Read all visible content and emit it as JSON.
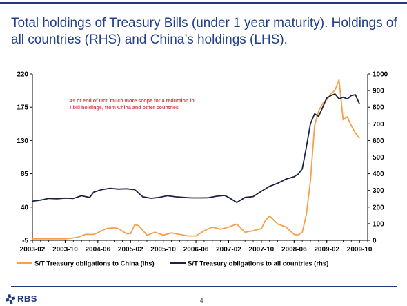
{
  "page": {
    "title": "Total holdings of Treasury Bills (under 1 year maturity). Holdings of all countries (RHS) and China’s holdings (LHS).",
    "page_number": "4",
    "logo_text": "RBS"
  },
  "chart_data": {
    "type": "line",
    "title": "",
    "xlabel": "",
    "ylabel": "",
    "y2label": "",
    "ylim": [
      -5,
      220
    ],
    "y2lim": [
      0,
      1000
    ],
    "yticks": [
      -5,
      40,
      85,
      130,
      175,
      220
    ],
    "y2ticks": [
      0,
      100,
      200,
      300,
      400,
      500,
      600,
      700,
      800,
      900,
      1000
    ],
    "xlim": [
      "2003-02",
      "2009-12"
    ],
    "xticks": [
      "2003-02",
      "2003-10",
      "2004-06",
      "2005-02",
      "2005-10",
      "2006-06",
      "2007-02",
      "2007-10",
      "2008-06",
      "2009-02",
      "2009-10"
    ],
    "grid": false,
    "legend_position": "bottom",
    "annotation": "As of end of Oct, much more scope for a reduction in T.bill holdings, from China and other countries",
    "colors": {
      "china": "#f5a04a",
      "all": "#1c2340",
      "annotation": "#d8414a",
      "axis": "#000000"
    },
    "series": [
      {
        "name": "S/T Treasury obligations to China (lhs)",
        "axis": "left",
        "x": [
          "2003-02",
          "2003-06",
          "2003-10",
          "2004-01",
          "2004-03",
          "2004-05",
          "2004-07",
          "2004-08",
          "2004-10",
          "2004-11",
          "2005-01",
          "2005-02",
          "2005-03",
          "2005-04",
          "2005-06",
          "2005-08",
          "2005-10",
          "2005-12",
          "2006-02",
          "2006-04",
          "2006-06",
          "2006-08",
          "2006-10",
          "2006-12",
          "2007-02",
          "2007-04",
          "2007-06",
          "2007-08",
          "2007-10",
          "2007-11",
          "2007-12",
          "2008-02",
          "2008-04",
          "2008-06",
          "2008-07",
          "2008-08",
          "2008-09",
          "2008-10",
          "2008-11",
          "2008-12",
          "2009-01",
          "2009-02",
          "2009-03",
          "2009-04",
          "2009-05",
          "2009-06",
          "2009-07",
          "2009-08",
          "2009-09",
          "2009-10"
        ],
        "y": [
          -3,
          -3,
          -3,
          -1,
          3,
          3,
          8,
          11,
          12,
          11,
          4,
          4,
          16,
          15,
          2,
          6,
          2,
          5,
          3,
          1,
          1,
          8,
          13,
          10,
          13,
          17,
          6,
          8,
          11,
          22,
          28,
          17,
          13,
          3,
          2,
          6,
          30,
          75,
          150,
          170,
          180,
          185,
          193,
          198,
          212,
          158,
          162,
          150,
          140,
          133
        ]
      },
      {
        "name": "S/T Treasury obligations to all countries (rhs)",
        "axis": "right",
        "x": [
          "2003-02",
          "2003-04",
          "2003-06",
          "2003-08",
          "2003-10",
          "2003-12",
          "2004-02",
          "2004-04",
          "2004-05",
          "2004-07",
          "2004-09",
          "2004-11",
          "2005-01",
          "2005-03",
          "2005-05",
          "2005-07",
          "2005-09",
          "2005-11",
          "2006-01",
          "2006-03",
          "2006-05",
          "2006-07",
          "2006-09",
          "2006-11",
          "2007-01",
          "2007-02",
          "2007-04",
          "2007-06",
          "2007-08",
          "2007-10",
          "2007-12",
          "2008-02",
          "2008-04",
          "2008-06",
          "2008-07",
          "2008-08",
          "2008-09",
          "2008-10",
          "2008-11",
          "2008-12",
          "2009-01",
          "2009-02",
          "2009-03",
          "2009-04",
          "2009-05",
          "2009-06",
          "2009-07",
          "2009-08",
          "2009-09",
          "2009-10"
        ],
        "y": [
          235,
          242,
          252,
          250,
          254,
          252,
          268,
          258,
          290,
          305,
          313,
          308,
          310,
          305,
          262,
          253,
          258,
          268,
          262,
          258,
          255,
          255,
          256,
          265,
          270,
          258,
          228,
          258,
          263,
          295,
          325,
          343,
          368,
          382,
          398,
          430,
          560,
          700,
          760,
          745,
          800,
          855,
          870,
          880,
          850,
          860,
          850,
          870,
          875,
          820
        ]
      }
    ]
  }
}
